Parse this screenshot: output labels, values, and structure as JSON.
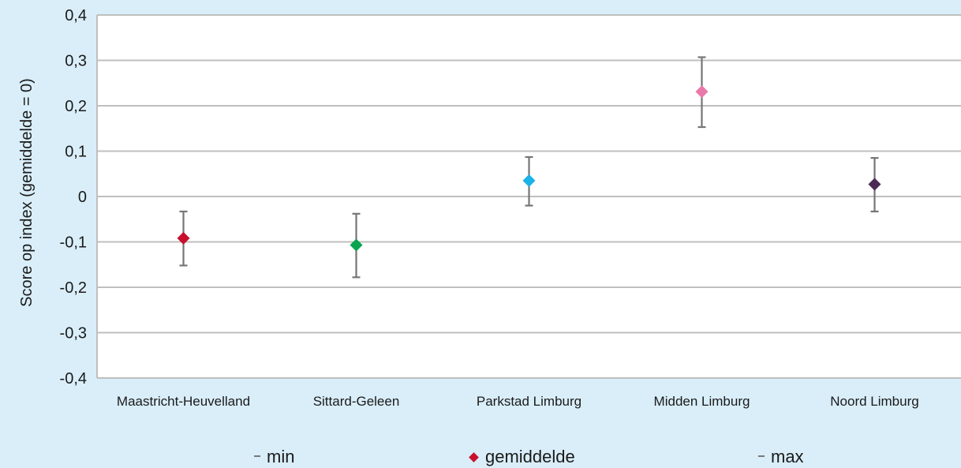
{
  "chart_data": {
    "type": "scatter",
    "ylabel": "Score op index (gemiddelde = 0)",
    "xlabel": "",
    "ylim": [
      -0.4,
      0.4
    ],
    "yticks": [
      -0.4,
      -0.3,
      -0.2,
      -0.1,
      0,
      0.1,
      0.2,
      0.3,
      0.4
    ],
    "ytick_labels": [
      "-0,4",
      "-0,3",
      "-0,2",
      "-0,1",
      "0",
      "0,1",
      "0,2",
      "0,3",
      "0,4"
    ],
    "grid": true,
    "categories": [
      "Maastricht-Heuvelland",
      "Sittard-Geleen",
      "Parkstad Limburg",
      "Midden Limburg",
      "Noord Limburg"
    ],
    "series": [
      {
        "name": "min",
        "values": [
          -0.152,
          -0.178,
          -0.02,
          0.153,
          -0.033
        ]
      },
      {
        "name": "gemiddelde",
        "values": [
          -0.092,
          -0.107,
          0.035,
          0.231,
          0.027
        ]
      },
      {
        "name": "max",
        "values": [
          -0.033,
          -0.038,
          0.087,
          0.307,
          0.085
        ]
      }
    ],
    "point_colors": [
      "#c8102e",
      "#0aa34f",
      "#1ab2e8",
      "#e879a8",
      "#4b2a55"
    ],
    "legend_position": "bottom",
    "colors": {
      "background": "#d9eef9",
      "plot_area": "#ffffff",
      "gridline": "#bfbfbf",
      "errorbar": "#767676",
      "legend_marker": "#c8102e"
    }
  }
}
